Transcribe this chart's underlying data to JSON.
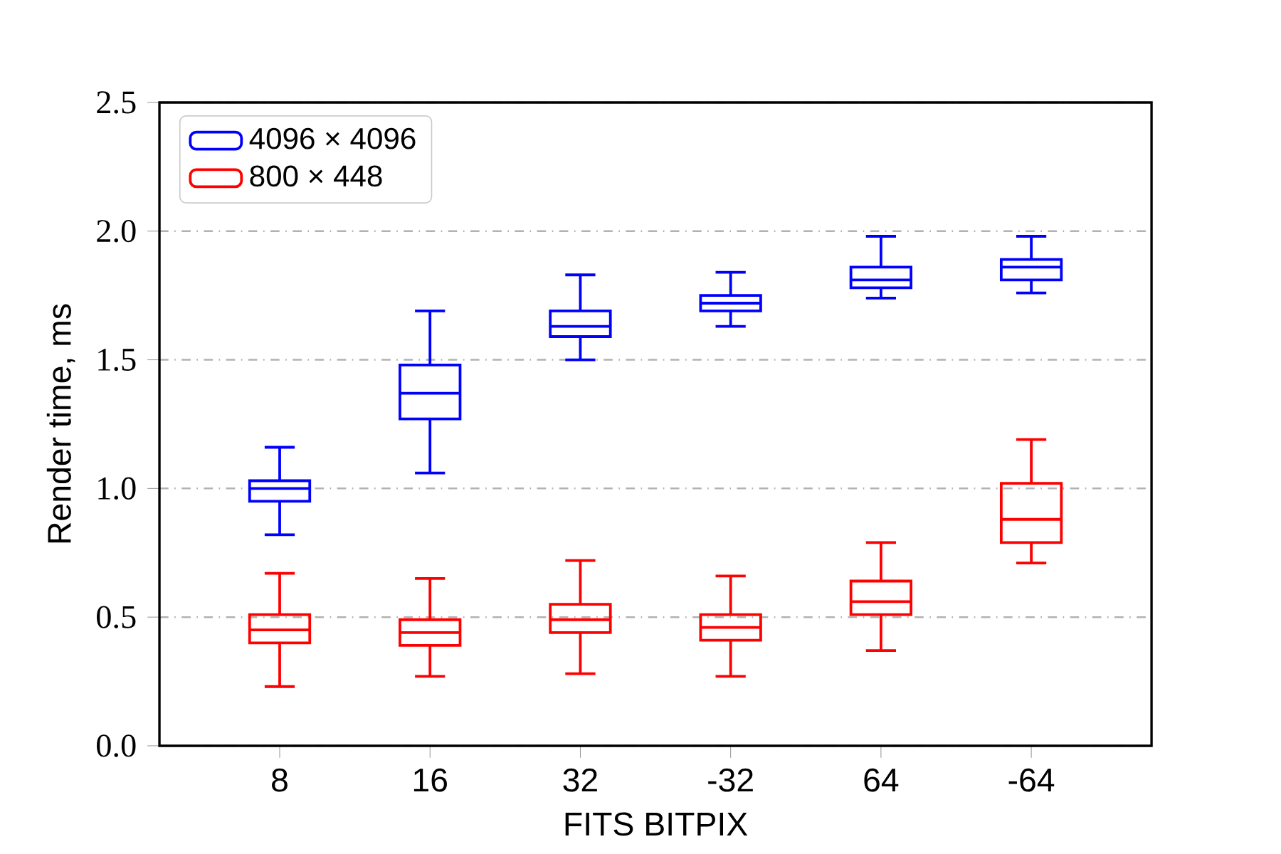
{
  "chart_data": {
    "type": "box",
    "xlabel": "FITS BITPIX",
    "ylabel": "Render time, ms",
    "categories": [
      "8",
      "16",
      "32",
      "-32",
      "64",
      "-64"
    ],
    "ylim": [
      0,
      2.5
    ],
    "yticks": [
      {
        "value": 0,
        "label": "0.0"
      },
      0.5,
      {
        "value": 1,
        "label": "1.0"
      },
      1.5,
      {
        "value": 2,
        "label": "2.0"
      },
      2.5
    ],
    "grid": "y",
    "legend": "top left",
    "series": [
      {
        "name": "4096 × 4096",
        "color": "#0000ff",
        "boxes": [
          {
            "low": 0.82,
            "q1": 0.95,
            "median": 1.0,
            "q3": 1.03,
            "high": 1.16
          },
          {
            "low": 1.06,
            "q1": 1.27,
            "median": 1.37,
            "q3": 1.48,
            "high": 1.69
          },
          {
            "low": 1.5,
            "q1": 1.59,
            "median": 1.63,
            "q3": 1.69,
            "high": 1.83
          },
          {
            "low": 1.63,
            "q1": 1.69,
            "median": 1.72,
            "q3": 1.75,
            "high": 1.84
          },
          {
            "low": 1.74,
            "q1": 1.78,
            "median": 1.81,
            "q3": 1.86,
            "high": 1.98
          },
          {
            "low": 1.76,
            "q1": 1.81,
            "median": 1.86,
            "q3": 1.89,
            "high": 1.98
          }
        ]
      },
      {
        "name": "800 × 448",
        "color": "#ff0000",
        "boxes": [
          {
            "low": 0.23,
            "q1": 0.4,
            "median": 0.45,
            "q3": 0.51,
            "high": 0.67
          },
          {
            "low": 0.27,
            "q1": 0.39,
            "median": 0.44,
            "q3": 0.49,
            "high": 0.65
          },
          {
            "low": 0.28,
            "q1": 0.44,
            "median": 0.49,
            "q3": 0.55,
            "high": 0.72
          },
          {
            "low": 0.27,
            "q1": 0.41,
            "median": 0.46,
            "q3": 0.51,
            "high": 0.66
          },
          {
            "low": 0.37,
            "q1": 0.51,
            "median": 0.56,
            "q3": 0.64,
            "high": 0.79
          },
          {
            "low": 0.71,
            "q1": 0.79,
            "median": 0.88,
            "q3": 1.02,
            "high": 1.19
          }
        ]
      }
    ]
  }
}
